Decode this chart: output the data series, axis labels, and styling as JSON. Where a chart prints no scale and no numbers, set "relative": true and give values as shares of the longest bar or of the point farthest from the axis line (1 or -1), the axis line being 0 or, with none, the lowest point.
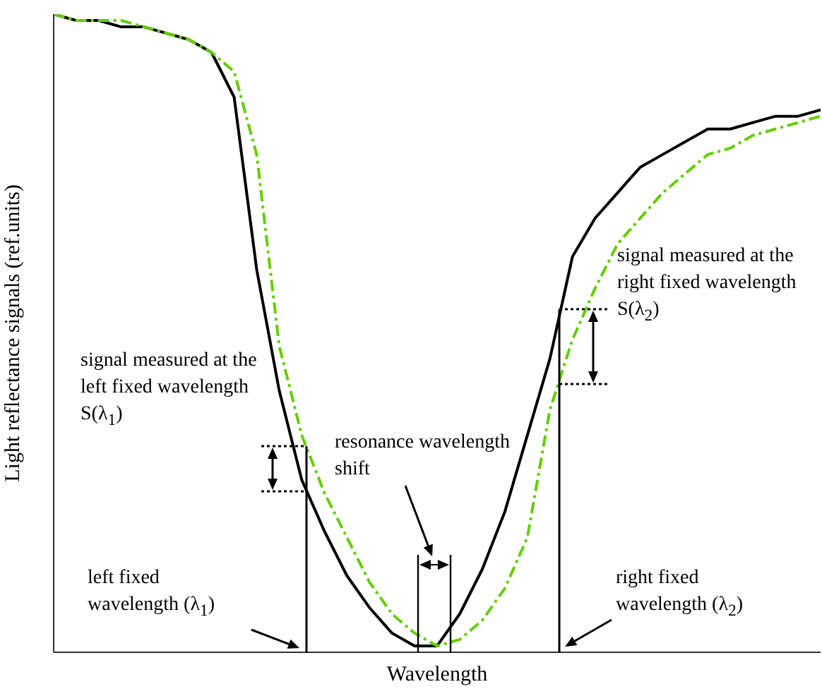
{
  "chart_data": {
    "type": "line",
    "relative": true,
    "xlabel": "Wavelength",
    "ylabel": "Light reflectance signals (ref.units)",
    "categories": [
      null,
      null,
      null,
      null,
      null,
      null,
      null,
      null,
      null,
      null,
      null,
      null,
      null,
      null,
      null,
      null,
      null,
      null,
      null,
      null,
      null,
      null,
      null,
      null,
      null,
      null,
      null,
      null,
      null,
      null,
      null,
      null,
      null,
      null,
      null
    ],
    "series": [
      {
        "color": "#000000",
        "line_style": "solid",
        "values": [
          1.0,
          0.99,
          0.99,
          0.98,
          0.98,
          0.97,
          0.96,
          0.94,
          0.87,
          0.6,
          0.41,
          0.27,
          0.19,
          0.12,
          0.07,
          0.03,
          0.01,
          0.01,
          0.06,
          0.13,
          0.22,
          0.34,
          0.46,
          0.62,
          0.68,
          0.72,
          0.76,
          0.78,
          0.8,
          0.82,
          0.82,
          0.83,
          0.84,
          0.84,
          0.85
        ]
      },
      {
        "color": "#66cc00",
        "line_style": "dashed",
        "values": [
          1.0,
          0.99,
          0.99,
          0.99,
          0.98,
          0.97,
          0.96,
          0.94,
          0.91,
          0.78,
          0.48,
          0.34,
          0.25,
          0.18,
          0.11,
          0.06,
          0.03,
          0.01,
          0.02,
          0.05,
          0.1,
          0.18,
          0.38,
          0.49,
          0.57,
          0.64,
          0.68,
          0.72,
          0.75,
          0.78,
          0.79,
          0.81,
          0.82,
          0.83,
          0.84
        ]
      }
    ],
    "annotations": [
      "signal measured at the left fixed wavelength  S(λ$_{1}$)",
      "signal measured at the right fixed wavelength  S(λ$_{2}$)",
      "resonance wavelength shift",
      "left fixed wavelength (λ$_{1}$)",
      "right fixed wavelength (λ$_{2}$)"
    ],
    "grid": false,
    "legend": false,
    "marker": "none"
  }
}
